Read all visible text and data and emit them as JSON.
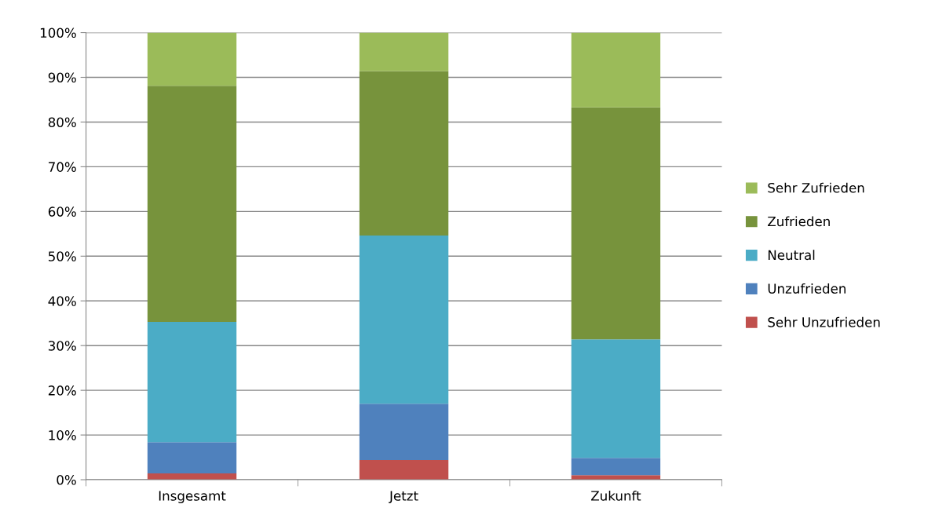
{
  "chart_data": {
    "type": "bar",
    "stacked": true,
    "categories": [
      "Insgesamt",
      "Jetzt",
      "Zukunft"
    ],
    "series": [
      {
        "name": "Sehr Unzufrieden",
        "color": "#c0504d",
        "values": [
          1.4,
          4.4,
          1.0
        ]
      },
      {
        "name": "Unzufrieden",
        "color": "#4f81bd",
        "values": [
          7.0,
          12.6,
          3.9
        ]
      },
      {
        "name": "Neutral",
        "color": "#4bacc6",
        "values": [
          26.9,
          37.6,
          26.5
        ]
      },
      {
        "name": "Zufrieden",
        "color": "#77933c",
        "values": [
          52.8,
          36.8,
          51.9
        ]
      },
      {
        "name": "Sehr Zufrieden",
        "color": "#9bbb59",
        "values": [
          11.9,
          8.6,
          16.7
        ]
      }
    ],
    "ylim": [
      0,
      100
    ],
    "yticks": [
      {
        "value": 0,
        "label": "0%"
      },
      {
        "value": 10,
        "label": "10%"
      },
      {
        "value": 20,
        "label": "20%"
      },
      {
        "value": 30,
        "label": "30%"
      },
      {
        "value": 40,
        "label": "40%"
      },
      {
        "value": 50,
        "label": "50%"
      },
      {
        "value": 60,
        "label": "60%"
      },
      {
        "value": 70,
        "label": "70%"
      },
      {
        "value": 80,
        "label": "80%"
      },
      {
        "value": 90,
        "label": "90%"
      },
      {
        "value": 100,
        "label": "100%"
      }
    ],
    "grid": "y",
    "legend": "right"
  }
}
